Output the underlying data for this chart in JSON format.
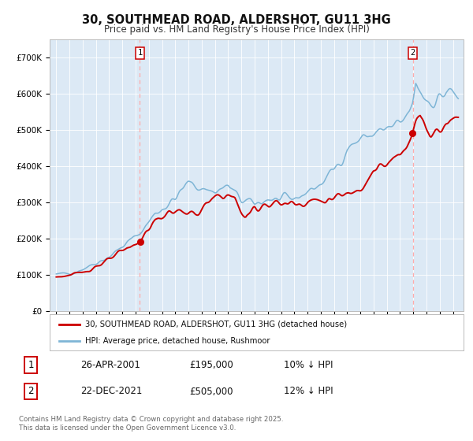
{
  "title": "30, SOUTHMEAD ROAD, ALDERSHOT, GU11 3HG",
  "subtitle": "Price paid vs. HM Land Registry's House Price Index (HPI)",
  "legend_line1": "30, SOUTHMEAD ROAD, ALDERSHOT, GU11 3HG (detached house)",
  "legend_line2": "HPI: Average price, detached house, Rushmoor",
  "annotation1_year": 2001.32,
  "annotation1_price": 195000,
  "annotation1_date": "26-APR-2001",
  "annotation1_hpi": "£195,000        10% ↓ HPI",
  "annotation2_year": 2021.97,
  "annotation2_price": 505000,
  "annotation2_date": "22-DEC-2021",
  "annotation2_hpi": "£505,000        12% ↓ HPI",
  "hpi_color": "#7eb5d6",
  "price_color": "#cc0000",
  "background_color": "#dce9f5",
  "annotation_line_color": "#ffaaaa",
  "ylim": [
    0,
    750000
  ],
  "yticks": [
    0,
    100000,
    200000,
    300000,
    400000,
    500000,
    600000,
    700000
  ],
  "footer_text": "Contains HM Land Registry data © Crown copyright and database right 2025.\nThis data is licensed under the Open Government Licence v3.0."
}
